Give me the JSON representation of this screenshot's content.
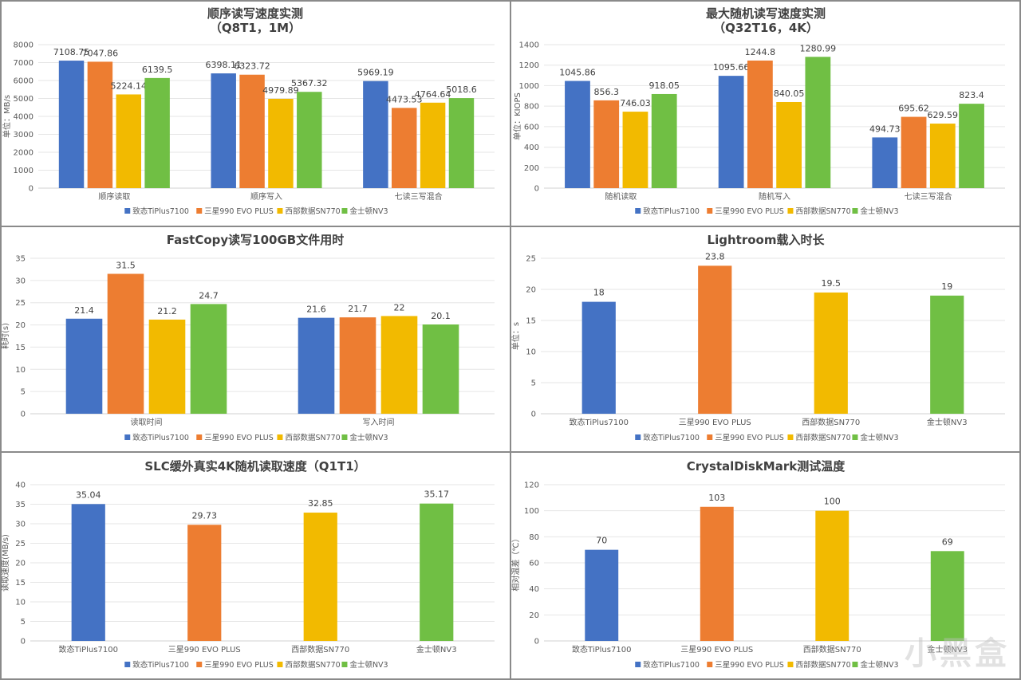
{
  "legend": [
    "致态TiPlus7100",
    "三星990 EVO PLUS",
    "西部数据SN770",
    "金士顿NV3"
  ],
  "colors": [
    "#4472C4",
    "#ED7D31",
    "#F2BA00",
    "#70BF44"
  ],
  "watermark": "小黑盒",
  "chart_data": [
    {
      "type": "bar",
      "title": "顺序读写速度实测",
      "subtitle": "（Q8T1，1M）",
      "ylabel": "单位：MB/s",
      "xlabel": "",
      "ylim": [
        0,
        8000
      ],
      "yticks": [
        0,
        1000,
        2000,
        3000,
        4000,
        5000,
        6000,
        7000,
        8000
      ],
      "grid": true,
      "legend_position": "bottom",
      "categories": [
        "顺序读取",
        "顺序写入",
        "七读三写混合"
      ],
      "series": [
        {
          "name": "致态TiPlus7100",
          "values": [
            7108.75,
            6398.11,
            5969.19
          ]
        },
        {
          "name": "三星990 EVO PLUS",
          "values": [
            7047.86,
            6323.72,
            4473.53
          ]
        },
        {
          "name": "西部数据SN770",
          "values": [
            5224.14,
            4979.89,
            4764.64
          ]
        },
        {
          "name": "金士顿NV3",
          "values": [
            6139.5,
            5367.32,
            5018.6
          ]
        }
      ]
    },
    {
      "type": "bar",
      "title": "最大随机读写速度实测",
      "subtitle": "（Q32T16，4K）",
      "ylabel": "单位：KIOPS",
      "xlabel": "",
      "ylim": [
        0,
        1400
      ],
      "yticks": [
        0,
        200,
        400,
        600,
        800,
        1000,
        1200,
        1400
      ],
      "grid": true,
      "legend_position": "bottom",
      "categories": [
        "随机读取",
        "随机写入",
        "七读三写混合"
      ],
      "series": [
        {
          "name": "致态TiPlus7100",
          "values": [
            1045.86,
            1095.66,
            494.73
          ]
        },
        {
          "name": "三星990 EVO PLUS",
          "values": [
            856.3,
            1244.8,
            695.62
          ]
        },
        {
          "name": "西部数据SN770",
          "values": [
            746.03,
            840.05,
            629.59
          ]
        },
        {
          "name": "金士顿NV3",
          "values": [
            918.05,
            1280.99,
            823.4
          ]
        }
      ]
    },
    {
      "type": "bar",
      "title": "FastCopy读写100GB文件用时",
      "subtitle": "",
      "ylabel": "耗时(s)",
      "xlabel": "",
      "ylim": [
        0,
        35
      ],
      "yticks": [
        0,
        5,
        10,
        15,
        20,
        25,
        30,
        35
      ],
      "grid": true,
      "legend_position": "bottom",
      "categories": [
        "读取时间",
        "写入时间"
      ],
      "series": [
        {
          "name": "致态TiPlus7100",
          "values": [
            21.4,
            21.6
          ]
        },
        {
          "name": "三星990 EVO PLUS",
          "values": [
            31.5,
            21.7
          ]
        },
        {
          "name": "西部数据SN770",
          "values": [
            21.2,
            22
          ]
        },
        {
          "name": "金士顿NV3",
          "values": [
            24.7,
            20.1
          ]
        }
      ]
    },
    {
      "type": "bar",
      "title": "Lightroom载入时长",
      "subtitle": "",
      "ylabel": "单位：s",
      "xlabel": "",
      "ylim": [
        0,
        25
      ],
      "yticks": [
        0,
        5,
        10,
        15,
        20,
        25
      ],
      "grid": true,
      "legend_position": "bottom",
      "categories": [
        "致态TiPlus7100",
        "三星990 EVO PLUS",
        "西部数据SN770",
        "金士顿NV3"
      ],
      "values": [
        18,
        23.8,
        19.5,
        19
      ]
    },
    {
      "type": "bar",
      "title": "SLC缓外真实4K随机读取速度（Q1T1）",
      "subtitle": "",
      "ylabel": "读取速度(MB/s)",
      "xlabel": "",
      "ylim": [
        0,
        40
      ],
      "yticks": [
        0,
        5,
        10,
        15,
        20,
        25,
        30,
        35,
        40
      ],
      "grid": true,
      "legend_position": "bottom",
      "categories": [
        "致态TiPlus7100",
        "三星990 EVO PLUS",
        "西部数据SN770",
        "金士顿NV3"
      ],
      "values": [
        35.04,
        29.73,
        32.85,
        35.17
      ]
    },
    {
      "type": "bar",
      "title": "CrystalDiskMark测试温度",
      "subtitle": "",
      "ylabel": "相对温差（℃）",
      "xlabel": "",
      "ylim": [
        0,
        120
      ],
      "yticks": [
        0,
        20,
        40,
        60,
        80,
        100,
        120
      ],
      "grid": true,
      "legend_position": "bottom",
      "categories": [
        "致态TiPlus7100",
        "三星990 EVO PLUS",
        "西部数据SN770",
        "金士顿NV3"
      ],
      "values": [
        70,
        103,
        100,
        69
      ]
    }
  ]
}
